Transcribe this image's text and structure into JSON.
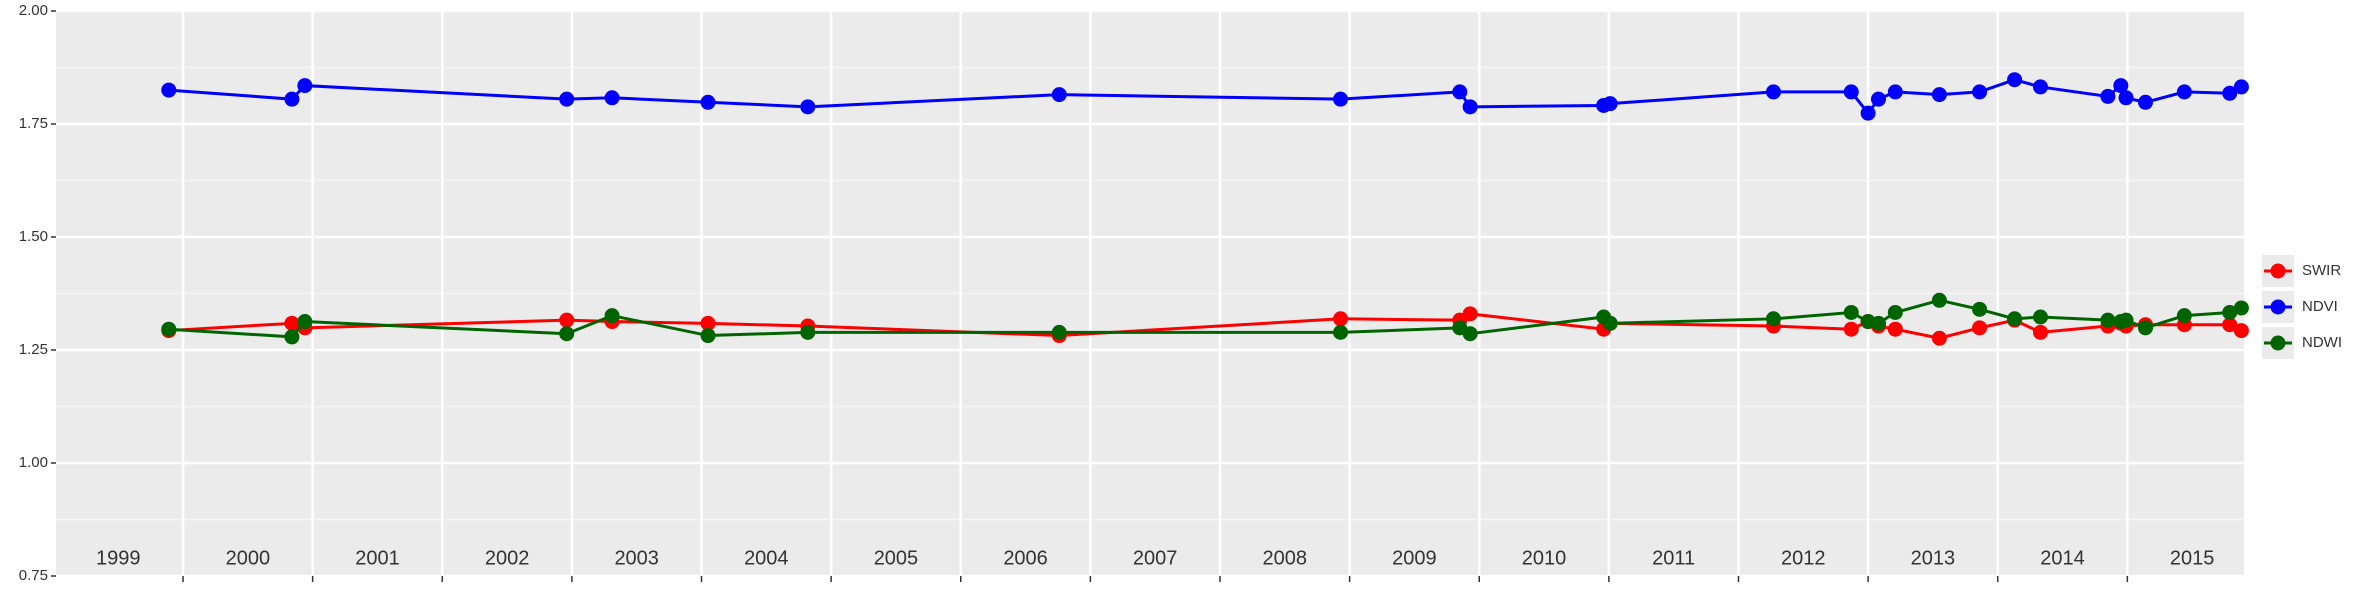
{
  "chart_data": {
    "type": "line",
    "x": [
      1999.89,
      2000.84,
      2000.94,
      2002.96,
      2003.31,
      2004.05,
      2004.82,
      2006.76,
      2008.93,
      2009.85,
      2009.93,
      2010.96,
      2011.01,
      2012.27,
      2012.87,
      2013.0,
      2013.08,
      2013.21,
      2013.55,
      2013.86,
      2014.13,
      2014.33,
      2014.85,
      2014.95,
      2014.99,
      2015.14,
      2015.44,
      2015.79,
      2015.88
    ],
    "series": [
      {
        "name": "SWIR",
        "color": "#ff0000",
        "values": [
          1.293,
          1.309,
          1.299,
          1.316,
          1.313,
          1.309,
          1.303,
          1.282,
          1.319,
          1.316,
          1.33,
          1.296,
          1.309,
          1.303,
          1.296,
          1.313,
          1.303,
          1.296,
          1.276,
          1.299,
          1.316,
          1.289,
          1.303,
          1.309,
          1.303,
          1.306,
          1.306,
          1.306,
          1.293
        ]
      },
      {
        "name": "NDVI",
        "color": "#0000ff",
        "values": [
          1.825,
          1.805,
          1.835,
          1.805,
          1.808,
          1.798,
          1.788,
          1.815,
          1.805,
          1.821,
          1.788,
          1.791,
          1.795,
          1.821,
          1.821,
          1.774,
          1.805,
          1.821,
          1.815,
          1.821,
          1.848,
          1.832,
          1.811,
          1.835,
          1.808,
          1.798,
          1.821,
          1.818,
          1.832
        ]
      },
      {
        "name": "NDWI",
        "color": "#006400",
        "values": [
          1.296,
          1.279,
          1.313,
          1.286,
          1.326,
          1.282,
          1.289,
          1.289,
          1.289,
          1.299,
          1.286,
          1.323,
          1.309,
          1.319,
          1.333,
          1.313,
          1.309,
          1.333,
          1.36,
          1.34,
          1.319,
          1.323,
          1.316,
          1.313,
          1.316,
          1.299,
          1.326,
          1.333,
          1.343
        ]
      }
    ],
    "xlim": [
      1999.02,
      2015.9
    ],
    "xticks": [
      {
        "value": 1999.5,
        "label": "1999"
      },
      {
        "value": 2000.5,
        "label": "2000"
      },
      {
        "value": 2001.5,
        "label": "2001"
      },
      {
        "value": 2002.5,
        "label": "2002"
      },
      {
        "value": 2003.5,
        "label": "2003"
      },
      {
        "value": 2004.5,
        "label": "2004"
      },
      {
        "value": 2005.5,
        "label": "2005"
      },
      {
        "value": 2006.5,
        "label": "2006"
      },
      {
        "value": 2007.5,
        "label": "2007"
      },
      {
        "value": 2008.5,
        "label": "2008"
      },
      {
        "value": 2009.5,
        "label": "2009"
      },
      {
        "value": 2010.5,
        "label": "2010"
      },
      {
        "value": 2011.5,
        "label": "2011"
      },
      {
        "value": 2012.5,
        "label": "2012"
      },
      {
        "value": 2013.5,
        "label": "2013"
      },
      {
        "value": 2014.5,
        "label": "2014"
      },
      {
        "value": 2015.5,
        "label": "2015"
      }
    ],
    "xgrid": [
      2000,
      2001,
      2002,
      2003,
      2004,
      2005,
      2006,
      2007,
      2008,
      2009,
      2010,
      2011,
      2012,
      2013,
      2014,
      2015
    ],
    "ylim": [
      0.75,
      2.0
    ],
    "yticks": [
      {
        "value": 0.75,
        "label": "0.75"
      },
      {
        "value": 1.0,
        "label": "1.00"
      },
      {
        "value": 1.25,
        "label": "1.25"
      },
      {
        "value": 1.5,
        "label": "1.50"
      },
      {
        "value": 1.75,
        "label": "1.75"
      },
      {
        "value": 2.0,
        "label": "2.00"
      }
    ],
    "grid": true
  }
}
